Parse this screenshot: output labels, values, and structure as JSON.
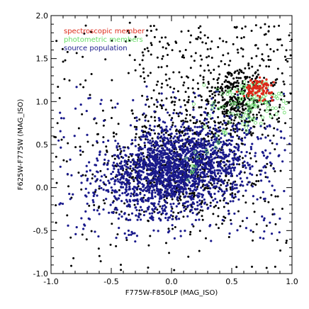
{
  "chart_data": {
    "type": "scatter",
    "title": "",
    "xlabel": "F775W-F850LP (MAG_ISO)",
    "ylabel": "F625W-F775W (MAG_ISO)",
    "xlim": [
      -1.0,
      1.0
    ],
    "ylim": [
      -1.0,
      2.0
    ],
    "xticks": [
      "-1.0",
      "-0.5",
      "0.0",
      "0.5",
      "1.0"
    ],
    "xtick_values": [
      -1.0,
      -0.5,
      0.0,
      0.5,
      1.0
    ],
    "yticks": [
      "-1.0",
      "-0.5",
      "0.0",
      "0.5",
      "1.0",
      "1.5",
      "2.0"
    ],
    "ytick_values": [
      -1.0,
      -0.5,
      0.0,
      0.5,
      1.0,
      1.5,
      2.0
    ],
    "grid": false,
    "legend_position": "top-left",
    "series": [
      {
        "name": "",
        "color": "#000000",
        "marker": "filled-circle",
        "count": 1500,
        "description": "all catalog objects (black)"
      },
      {
        "name": "source population",
        "color": "#1a1a8c",
        "marker": "filled-circle",
        "count": 2000,
        "center": [
          0.05,
          0.2
        ],
        "spread": [
          0.3,
          0.25
        ]
      },
      {
        "name": "photometric members",
        "color": "#66dd66",
        "marker": "open-circle",
        "count": 140,
        "center": [
          0.65,
          1.0
        ],
        "spread": [
          0.15,
          0.12
        ]
      },
      {
        "name": "spectroscopic member",
        "color": "#dd2a1a",
        "marker": "filled-circle",
        "count": 90,
        "center": [
          0.72,
          1.15
        ],
        "spread": [
          0.06,
          0.05
        ]
      }
    ]
  }
}
